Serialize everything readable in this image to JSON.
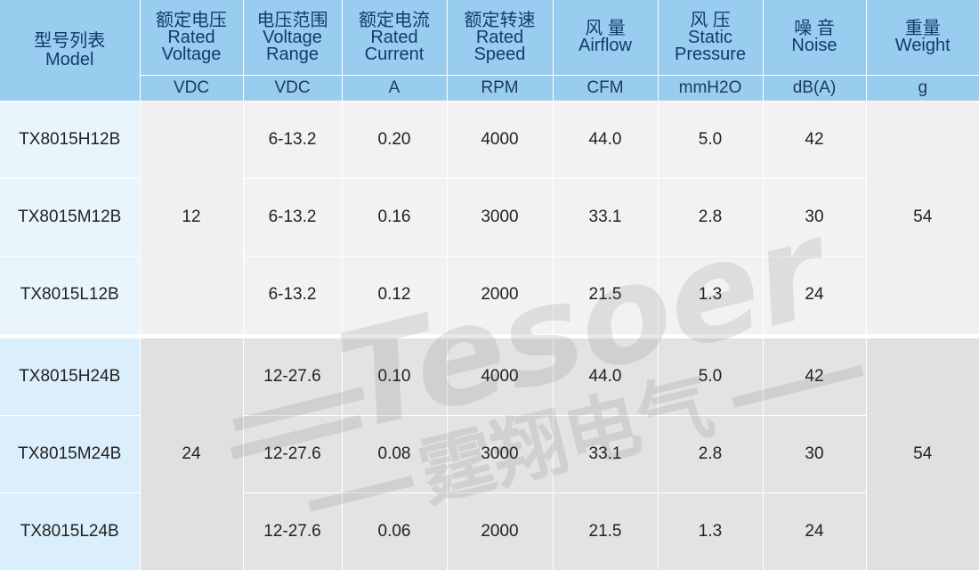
{
  "table": {
    "headers": [
      {
        "zh": "型号列表",
        "en": "Model",
        "unit": ""
      },
      {
        "zh": "额定电压",
        "en": "Rated Voltage",
        "unit": "VDC"
      },
      {
        "zh": "电压范围",
        "en": "Voltage Range",
        "unit": "VDC"
      },
      {
        "zh": "额定电流",
        "en": "Rated Current",
        "unit": "A"
      },
      {
        "zh": "额定转速",
        "en": "Rated Speed",
        "unit": "RPM"
      },
      {
        "zh": "风 量",
        "en": "Airflow",
        "unit": "CFM"
      },
      {
        "zh": "风 压",
        "en": "Static Pressure",
        "unit": "mmH2O"
      },
      {
        "zh": "噪 音",
        "en": "Noise",
        "unit": "dB(A)"
      },
      {
        "zh": "重量",
        "en": "Weight",
        "unit": "g"
      }
    ],
    "header_en_lines": {
      "rated_voltage": [
        "Rated",
        "Voltage"
      ],
      "voltage_range": [
        "Voltage",
        "Range"
      ],
      "rated_current": [
        "Rated",
        "Current"
      ],
      "rated_speed": [
        "Rated",
        "Speed"
      ],
      "static_pressure": [
        "Static",
        "Pressure"
      ]
    },
    "groups": [
      {
        "rated_voltage": "12",
        "weight": "54",
        "rows": [
          {
            "model": "TX8015H12B",
            "range": "6-13.2",
            "current": "0.20",
            "speed": "4000",
            "airflow": "44.0",
            "pressure": "5.0",
            "noise": "42"
          },
          {
            "model": "TX8015M12B",
            "range": "6-13.2",
            "current": "0.16",
            "speed": "3000",
            "airflow": "33.1",
            "pressure": "2.8",
            "noise": "30"
          },
          {
            "model": "TX8015L12B",
            "range": "6-13.2",
            "current": "0.12",
            "speed": "2000",
            "airflow": "21.5",
            "pressure": "1.3",
            "noise": "24"
          }
        ]
      },
      {
        "rated_voltage": "24",
        "weight": "54",
        "rows": [
          {
            "model": "TX8015H24B",
            "range": "12-27.6",
            "current": "0.10",
            "speed": "4000",
            "airflow": "44.0",
            "pressure": "5.0",
            "noise": "42"
          },
          {
            "model": "TX8015M24B",
            "range": "12-27.6",
            "current": "0.08",
            "speed": "3000",
            "airflow": "33.1",
            "pressure": "2.8",
            "noise": "30"
          },
          {
            "model": "TX8015L24B",
            "range": "12-27.6",
            "current": "0.06",
            "speed": "2000",
            "airflow": "21.5",
            "pressure": "1.3",
            "noise": "24"
          }
        ]
      }
    ]
  },
  "watermark": {
    "brand": "Tesoer",
    "zh": "霆翔电气"
  },
  "colors": {
    "header_bg": "#99cdef",
    "header_text": "#123a6b",
    "model_col_bg": "#e9f5fd",
    "row_bg_group1": "#f2f2f2",
    "row_bg_group2": "#e3e3e3"
  }
}
